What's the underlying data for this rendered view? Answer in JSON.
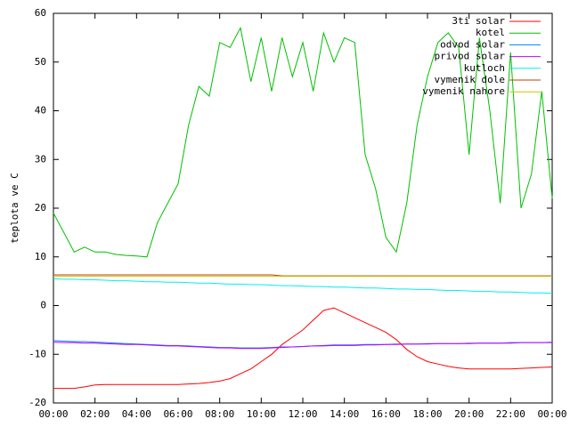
{
  "chart_data": {
    "type": "line",
    "ylabel": "teplota ve C",
    "x": [
      0,
      0.5,
      1,
      1.5,
      2,
      2.5,
      3,
      3.5,
      4,
      4.5,
      5,
      5.5,
      6,
      6.5,
      7,
      7.5,
      8,
      8.5,
      9,
      9.5,
      10,
      10.5,
      11,
      11.5,
      12,
      12.5,
      13,
      13.5,
      14,
      14.5,
      15,
      15.5,
      16,
      16.5,
      17,
      17.5,
      18,
      18.5,
      19,
      19.5,
      20,
      20.5,
      21,
      21.5,
      22,
      22.5,
      23,
      23.5,
      24
    ],
    "xlim": [
      0,
      24
    ],
    "xticks": [
      {
        "value": 0,
        "label": "00:00"
      },
      {
        "value": 2,
        "label": "02:00"
      },
      {
        "value": 4,
        "label": "04:00"
      },
      {
        "value": 6,
        "label": "06:00"
      },
      {
        "value": 8,
        "label": "08:00"
      },
      {
        "value": 10,
        "label": "10:00"
      },
      {
        "value": 12,
        "label": "12:00"
      },
      {
        "value": 14,
        "label": "14:00"
      },
      {
        "value": 16,
        "label": "16:00"
      },
      {
        "value": 18,
        "label": "18:00"
      },
      {
        "value": 20,
        "label": "20:00"
      },
      {
        "value": 22,
        "label": "22:00"
      },
      {
        "value": 24,
        "label": "00:00"
      }
    ],
    "ylim": [
      -20,
      60
    ],
    "yticks": [
      -20,
      -10,
      0,
      10,
      20,
      30,
      40,
      50,
      60
    ],
    "legend": "top-right",
    "series": [
      {
        "name": "3ti solar",
        "color": "#ff0000",
        "values": [
          -17,
          -17,
          -17,
          -16.7,
          -16.3,
          -16.2,
          -16.2,
          -16.2,
          -16.2,
          -16.2,
          -16.2,
          -16.2,
          -16.2,
          -16.1,
          -16,
          -15.8,
          -15.5,
          -15,
          -14,
          -13,
          -11.5,
          -10,
          -8,
          -6.5,
          -5,
          -3,
          -1,
          -0.5,
          -1.5,
          -2.5,
          -3.5,
          -4.5,
          -5.5,
          -7,
          -9,
          -10.5,
          -11.5,
          -12,
          -12.5,
          -12.8,
          -13,
          -13,
          -13,
          -13,
          -13,
          -12.9,
          -12.8,
          -12.7,
          -12.6
        ]
      },
      {
        "name": "kotel",
        "color": "#00c000",
        "values": [
          19,
          15,
          11,
          12,
          11,
          11,
          10.5,
          10.3,
          10.2,
          10,
          17,
          21,
          25,
          37,
          45,
          43,
          54,
          53,
          57,
          46,
          55,
          44,
          55,
          47,
          54,
          44,
          56,
          50,
          55,
          54,
          31,
          24,
          14,
          11,
          21,
          37,
          47,
          54,
          56,
          53,
          31,
          55,
          40,
          21,
          52,
          20,
          27,
          44,
          22
        ]
      },
      {
        "name": "odvod solar",
        "color": "#0080ff",
        "values": [
          -7.2,
          -7.3,
          -7.4,
          -7.4,
          -7.5,
          -7.6,
          -7.7,
          -7.8,
          -7.9,
          -8,
          -8.1,
          -8.2,
          -8.2,
          -8.3,
          -8.4,
          -8.5,
          -8.6,
          -8.6,
          -8.7,
          -8.7,
          -8.7,
          -8.6,
          -8.5,
          -8.5,
          -8.4,
          -8.3,
          -8.2,
          -8.1,
          -8.1,
          -8.1,
          -8,
          -8,
          -8,
          -7.9,
          -7.9,
          -7.9,
          -7.8,
          -7.8,
          -7.8,
          -7.8,
          -7.7,
          -7.7,
          -7.7,
          -7.7,
          -7.6,
          -7.6,
          -7.6,
          -7.6,
          -7.5
        ]
      },
      {
        "name": "privod solar",
        "color": "#c000ff",
        "values": [
          -7.5,
          -7.6,
          -7.6,
          -7.7,
          -7.7,
          -7.8,
          -7.9,
          -8,
          -8,
          -8.1,
          -8.2,
          -8.3,
          -8.3,
          -8.4,
          -8.5,
          -8.6,
          -8.7,
          -8.7,
          -8.8,
          -8.8,
          -8.8,
          -8.7,
          -8.6,
          -8.5,
          -8.4,
          -8.3,
          -8.3,
          -8.2,
          -8.2,
          -8.2,
          -8.1,
          -8.1,
          -8,
          -8,
          -7.9,
          -7.9,
          -7.9,
          -7.8,
          -7.8,
          -7.8,
          -7.8,
          -7.7,
          -7.7,
          -7.7,
          -7.7,
          -7.6,
          -7.6,
          -7.6,
          -7.6
        ]
      },
      {
        "name": "kutloch",
        "color": "#00eeee",
        "values": [
          5.5,
          5.4,
          5.4,
          5.3,
          5.3,
          5.2,
          5.1,
          5.1,
          5,
          4.9,
          4.9,
          4.8,
          4.8,
          4.7,
          4.6,
          4.6,
          4.5,
          4.4,
          4.4,
          4.3,
          4.3,
          4.2,
          4.1,
          4.1,
          4,
          3.9,
          3.9,
          3.8,
          3.8,
          3.7,
          3.6,
          3.6,
          3.5,
          3.4,
          3.4,
          3.3,
          3.3,
          3.2,
          3.1,
          3.1,
          3,
          2.9,
          2.9,
          2.8,
          2.8,
          2.7,
          2.6,
          2.6,
          2.5
        ]
      },
      {
        "name": "vymenik dole",
        "color": "#c04000",
        "values": [
          6.3,
          6.3,
          6.3,
          6.3,
          6.3,
          6.3,
          6.3,
          6.3,
          6.3,
          6.3,
          6.3,
          6.3,
          6.3,
          6.3,
          6.3,
          6.3,
          6.3,
          6.3,
          6.3,
          6.3,
          6.3,
          6.3,
          6.1,
          6.1,
          6.1,
          6.1,
          6.1,
          6.1,
          6.1,
          6.1,
          6.1,
          6.1,
          6.1,
          6.1,
          6.1,
          6.1,
          6.1,
          6.1,
          6.1,
          6.1,
          6.1,
          6.1,
          6.1,
          6.1,
          6.1,
          6.1,
          6.1,
          6.1,
          6.1
        ]
      },
      {
        "name": "vymenik nahore",
        "color": "#c8c800",
        "values": [
          6,
          6,
          6,
          6,
          6,
          6,
          6,
          6,
          6,
          6,
          6,
          6,
          6,
          6,
          6,
          6,
          6,
          6,
          6,
          6,
          6,
          6,
          6,
          6,
          6,
          6,
          6,
          6,
          6,
          6,
          6,
          6,
          6,
          6,
          6,
          6,
          6,
          6,
          6,
          6,
          6,
          6,
          6,
          6,
          6,
          6,
          6,
          6,
          6
        ]
      }
    ]
  }
}
